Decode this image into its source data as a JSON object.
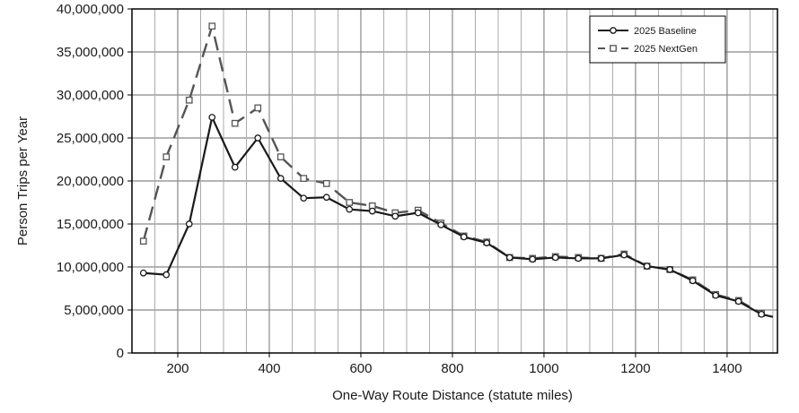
{
  "chart_data": {
    "type": "line",
    "title": "",
    "xlabel": "One-Way Route Distance (statute miles)",
    "ylabel": "Person Trips per Year",
    "xlim": [
      100,
      1510
    ],
    "ylim": [
      0,
      40000000
    ],
    "x_ticks": [
      200,
      400,
      600,
      800,
      1000,
      1200,
      1400
    ],
    "y_ticks": [
      0,
      5000000,
      10000000,
      15000000,
      20000000,
      25000000,
      30000000,
      35000000,
      40000000
    ],
    "x_tick_labels": [
      "200",
      "400",
      "600",
      "800",
      "1000",
      "1200",
      "1400"
    ],
    "y_tick_labels": [
      "0",
      "5,000,000",
      "10,000,000",
      "15,000,000",
      "20,000,000",
      "25,000,000",
      "30,000,000",
      "35,000,000",
      "40,000,000"
    ],
    "grid": true,
    "legend_position": "top-right",
    "x": [
      125,
      175,
      225,
      275,
      325,
      375,
      425,
      475,
      525,
      575,
      625,
      675,
      725,
      775,
      825,
      875,
      925,
      975,
      1025,
      1075,
      1125,
      1175,
      1225,
      1275,
      1325,
      1375,
      1425,
      1475,
      1500
    ],
    "series": [
      {
        "name": "2025 Baseline",
        "color": "#1a1a1a",
        "dash": "solid",
        "marker": "circle",
        "values": [
          9300000,
          9100000,
          15000000,
          27400000,
          21600000,
          25000000,
          20300000,
          18000000,
          18100000,
          16700000,
          16500000,
          15900000,
          16300000,
          14900000,
          13500000,
          12800000,
          11100000,
          10900000,
          11100000,
          11000000,
          11000000,
          11400000,
          10100000,
          9700000,
          8400000,
          6700000,
          6000000,
          4500000,
          4200000
        ]
      },
      {
        "name": "2025 NextGen",
        "color": "#555555",
        "dash": "dashed",
        "marker": "square",
        "values": [
          13000000,
          22800000,
          29400000,
          38000000,
          26700000,
          28500000,
          22800000,
          20300000,
          19700000,
          17500000,
          17100000,
          16300000,
          16600000,
          15100000,
          13600000,
          12900000,
          11100000,
          11000000,
          11200000,
          11100000,
          11000000,
          11500000,
          10100000,
          9700000,
          8500000,
          6800000,
          6100000,
          4600000,
          null
        ]
      }
    ]
  }
}
